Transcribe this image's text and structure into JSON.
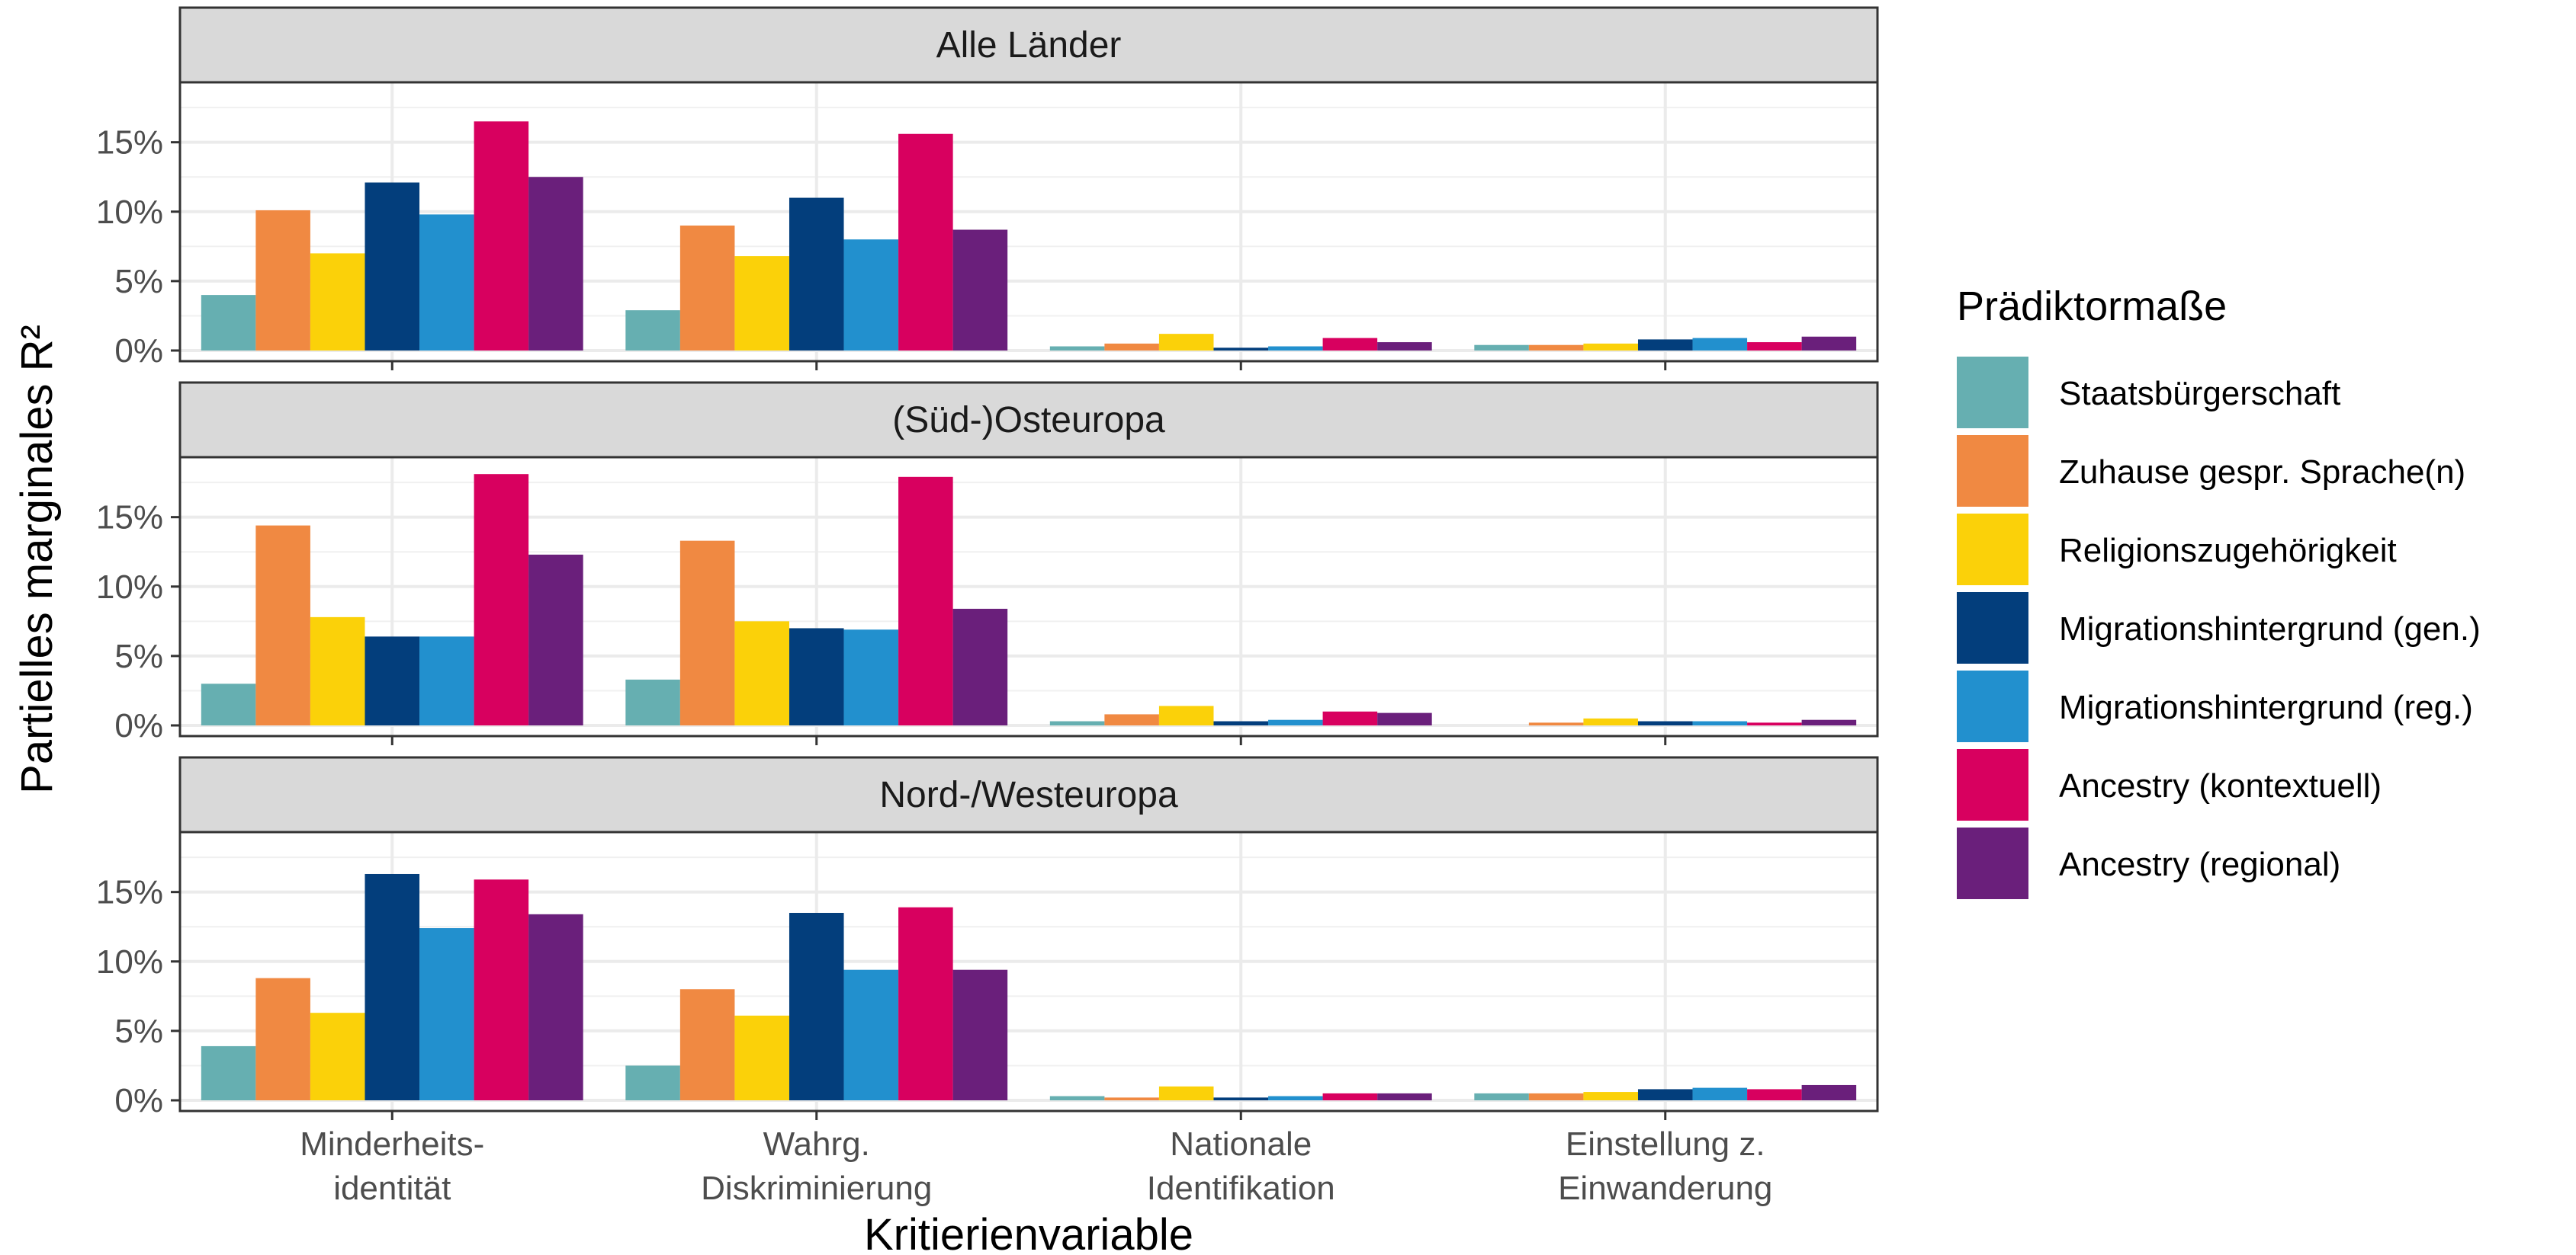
{
  "chart_data": {
    "type": "bar",
    "xlabel": "Kritierienvariable",
    "ylabel": "Partielles marginales R²",
    "categories": [
      [
        "Minderheits-",
        "identität"
      ],
      [
        "Wahrg.",
        "Diskriminierung"
      ],
      [
        "Nationale",
        "Identifikation"
      ],
      [
        "Einstellung z.",
        "Einwanderung"
      ]
    ],
    "ylim": [
      0,
      18
    ],
    "yticks": [
      0,
      5,
      10,
      15
    ],
    "ytick_labels": [
      "0%",
      "5%",
      "10%",
      "15%"
    ],
    "grid": true,
    "legend": {
      "title": "Prädiktormaße",
      "position": "right"
    },
    "series": [
      {
        "name": "Staatsbürgerschaft",
        "color": "#66AFB1"
      },
      {
        "name": "Zuhause gespr. Sprache(n)",
        "color": "#F08942"
      },
      {
        "name": "Religionszugehörigkeit",
        "color": "#FBD109"
      },
      {
        "name": "Migrationshintergrund (gen.)",
        "color": "#033E7C"
      },
      {
        "name": "Migrationshintergrund (reg.)",
        "color": "#2290CE"
      },
      {
        "name": "Ancestry (kontextuell)",
        "color": "#D8005F"
      },
      {
        "name": "Ancestry (regional)",
        "color": "#6A1F7B"
      }
    ],
    "panels": [
      {
        "title": "Alle Länder",
        "values": [
          [
            4.0,
            10.1,
            7.0,
            12.1,
            9.8,
            16.5,
            12.5
          ],
          [
            2.9,
            9.0,
            6.8,
            11.0,
            8.0,
            15.6,
            8.7
          ],
          [
            0.3,
            0.5,
            1.2,
            0.2,
            0.3,
            0.9,
            0.6
          ],
          [
            0.4,
            0.4,
            0.5,
            0.8,
            0.9,
            0.6,
            1.0
          ]
        ]
      },
      {
        "title": "(Süd-)Osteuropa",
        "values": [
          [
            3.0,
            14.4,
            7.8,
            6.4,
            6.4,
            18.1,
            12.3
          ],
          [
            3.3,
            13.3,
            7.5,
            7.0,
            6.9,
            17.9,
            8.4
          ],
          [
            0.3,
            0.8,
            1.4,
            0.3,
            0.4,
            1.0,
            0.9
          ],
          [
            0.0,
            0.2,
            0.5,
            0.3,
            0.3,
            0.2,
            0.4
          ]
        ]
      },
      {
        "title": "Nord-/Westeuropa",
        "values": [
          [
            3.9,
            8.8,
            6.3,
            16.3,
            12.4,
            15.9,
            13.4
          ],
          [
            2.5,
            8.0,
            6.1,
            13.5,
            9.4,
            13.9,
            9.4
          ],
          [
            0.3,
            0.2,
            1.0,
            0.2,
            0.3,
            0.5,
            0.5
          ],
          [
            0.5,
            0.5,
            0.6,
            0.8,
            0.9,
            0.8,
            1.1
          ]
        ]
      }
    ]
  }
}
